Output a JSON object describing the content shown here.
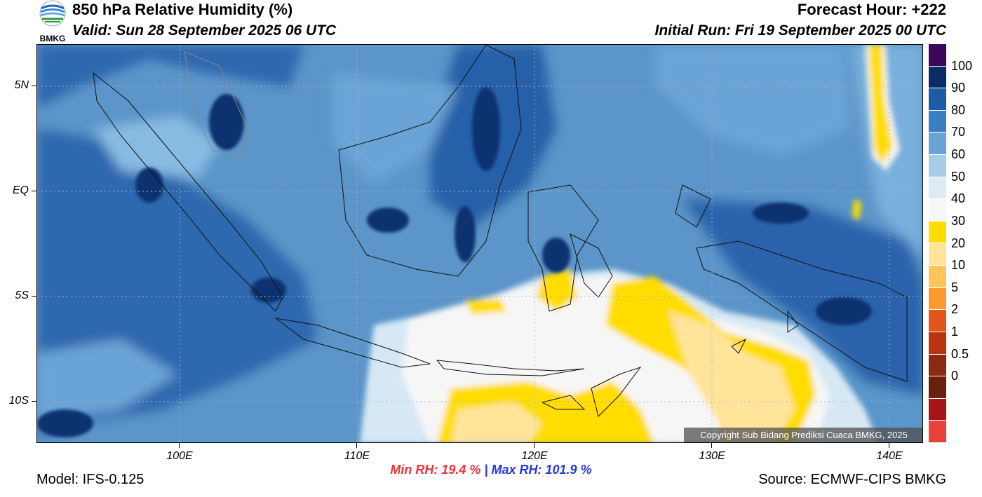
{
  "header": {
    "logo_text": "BMKG",
    "title": "850 hPa Relative Humidity (%)",
    "valid": "Valid: Sun 28 September 2025 06 UTC",
    "forecast_hour": "Forecast Hour: +222",
    "initial_run": "Initial Run: Fri 19 September 2025 00 UTC"
  },
  "map": {
    "y_labels": [
      "5N",
      "EQ",
      "5S",
      "10S"
    ],
    "x_labels": [
      "100E",
      "110E",
      "120E",
      "130E",
      "140E"
    ],
    "copyright": "Copyright Sub Bidang Prediksi Cuaca BMKG, 2025"
  },
  "colorbar": {
    "labels": [
      "100",
      "90",
      "80",
      "70",
      "60",
      "50",
      "40",
      "30",
      "20",
      "10",
      "5",
      "2",
      "1",
      "0.5",
      "0"
    ],
    "colors": [
      "#3b0857",
      "#0d2b66",
      "#1f5aa4",
      "#3c7fc0",
      "#6ba3d6",
      "#a6cce8",
      "#dcebf5",
      "#f7f7f7",
      "#ffdd00",
      "#ffe49a",
      "#ffc55a",
      "#fb9a2c",
      "#e0551a",
      "#b8340f",
      "#8a2a10",
      "#66200c",
      "#a51515",
      "#e8423a"
    ]
  },
  "stats": {
    "min_rh": "Min RH:  19.4 %",
    "separator": "|",
    "max_rh": "Max RH: 101.9 %"
  },
  "footer": {
    "model": "Model: IFS-0.125",
    "source": "Source: ECMWF-CIPS BMKG"
  }
}
